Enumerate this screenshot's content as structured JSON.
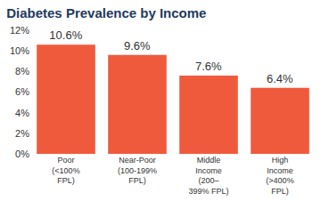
{
  "chart_data": {
    "type": "bar",
    "title": "Diabetes Prevalence by Income",
    "categories": [
      "Poor\n(<100%\nFPL)",
      "Near-Poor\n(100-199%\nFPL)",
      "Middle\nIncome\n(200–\n399% FPL)",
      "High\nIncome\n(>400%\nFPL)"
    ],
    "values": [
      10.6,
      9.6,
      7.6,
      6.4
    ],
    "value_labels": [
      "10.6%",
      "9.6%",
      "7.6%",
      "6.4%"
    ],
    "color": "#f05a3c",
    "ylim": [
      0,
      12
    ],
    "yticks": [
      {
        "value": 0,
        "label": "0%"
      },
      {
        "value": 2,
        "label": "2%"
      },
      {
        "value": 4,
        "label": "4%"
      },
      {
        "value": 6,
        "label": "6%"
      },
      {
        "value": 8,
        "label": "8%"
      },
      {
        "value": 10,
        "label": "10%"
      },
      {
        "value": 12,
        "label": "12%"
      }
    ],
    "grid": false,
    "data_labels": true
  }
}
